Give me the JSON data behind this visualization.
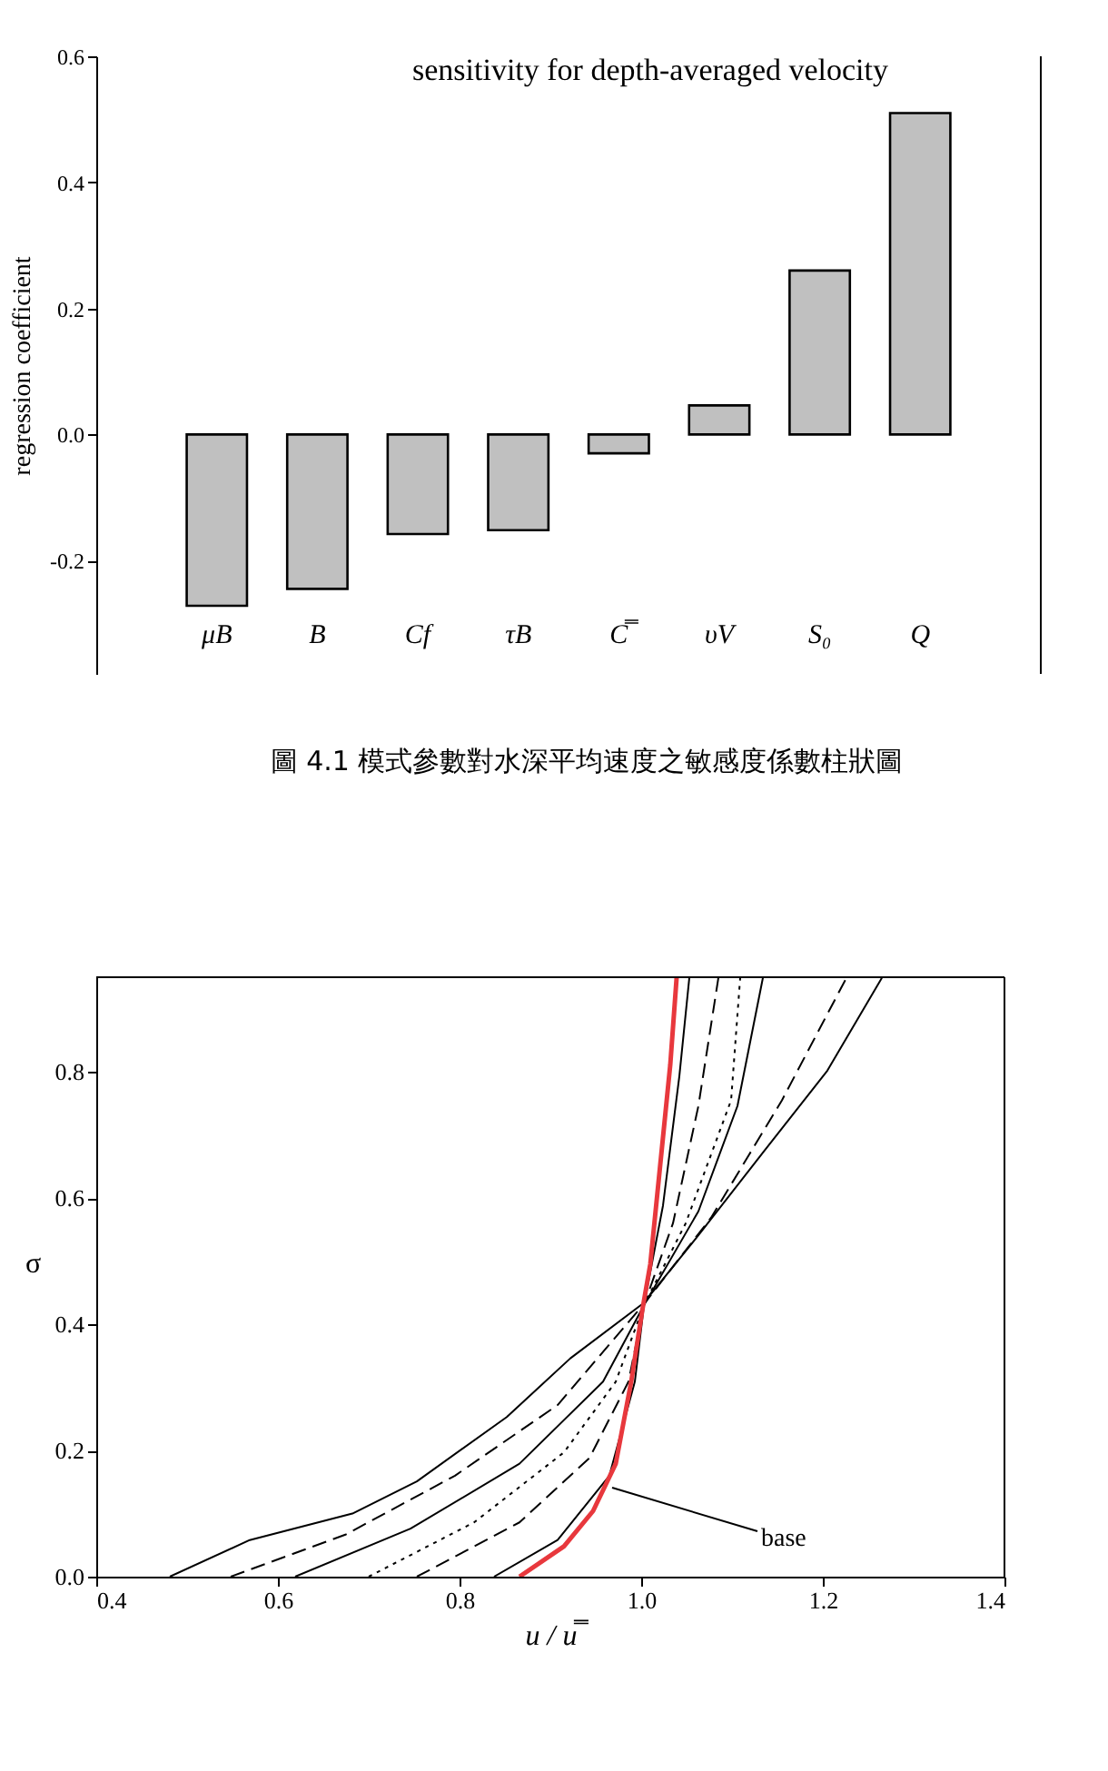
{
  "chart_data": [
    {
      "type": "bar",
      "title": "sensitivity for depth-averaged velocity",
      "ylabel": "regression coefficient",
      "categories": [
        "μB",
        "B",
        "Cf",
        "τB",
        "C̿",
        "υV",
        "S₀",
        "Q"
      ],
      "values": [
        -0.272,
        -0.245,
        -0.158,
        -0.152,
        -0.03,
        0.046,
        0.26,
        0.51
      ],
      "color": "#c0c0c0",
      "ylim": [
        -0.38,
        0.6
      ],
      "yticks": [
        -0.2,
        {
          "value": 0,
          "label": "0.0"
        },
        0.2,
        0.4,
        0.6
      ],
      "grid": false,
      "annotations": [
        "圖 4.1 模式參數對水深平均速度之敏感度係數柱狀圖"
      ]
    },
    {
      "type": "line",
      "xlabel": "u / u̿",
      "ylabel": "σ",
      "xlim": [
        0.4,
        1.4
      ],
      "xticks": [
        0.4,
        0.6,
        0.8,
        {
          "value": 1,
          "label": "1.0"
        },
        1.2,
        1.4
      ],
      "ylim": [
        0,
        0.95
      ],
      "yticks": [
        {
          "value": 0,
          "label": "0.0"
        },
        0.2,
        0.4,
        0.6,
        0.8
      ],
      "grid": false,
      "series": [
        {
          "color": "#000000",
          "line_style": "solid",
          "x": [
            0.481,
            0.569,
            0.682,
            0.753,
            0.852,
            0.922,
            1.003,
            1.063,
            1.134,
            1.205,
            1.265
          ],
          "values": [
            0,
            0.058,
            0.1,
            0.151,
            0.253,
            0.346,
            0.434,
            0.541,
            0.672,
            0.802,
            0.949
          ]
        },
        {
          "color": "#000000",
          "line_style": "dashed",
          "x": [
            0.548,
            0.675,
            0.795,
            0.908,
            1.003,
            1.077,
            1.155,
            1.226
          ],
          "values": [
            0,
            0.067,
            0.16,
            0.272,
            0.432,
            0.569,
            0.755,
            0.949
          ]
        },
        {
          "color": "#000000",
          "line_style": "solid",
          "x": [
            0.619,
            0.746,
            0.866,
            0.958,
            1.003,
            1.063,
            1.106,
            1.134
          ],
          "values": [
            0,
            0.076,
            0.179,
            0.309,
            0.43,
            0.579,
            0.746,
            0.949
          ]
        },
        {
          "color": "#000000",
          "line_style": "dotted",
          "x": [
            0.7,
            0.816,
            0.915,
            0.972,
            1.003,
            1.049,
            1.099,
            1.109
          ],
          "values": [
            0,
            0.086,
            0.197,
            0.309,
            0.43,
            0.56,
            0.755,
            0.949
          ]
        },
        {
          "color": "#000000",
          "line_style": "dashed",
          "x": [
            0.753,
            0.866,
            0.943,
            0.986,
            1.003,
            1.035,
            1.063,
            1.085
          ],
          "values": [
            0,
            0.086,
            0.188,
            0.309,
            0.43,
            0.56,
            0.746,
            0.949
          ]
        },
        {
          "color": "#000000",
          "line_style": "solid",
          "x": [
            0.838,
            0.908,
            0.965,
            0.993,
            1.003,
            1.024,
            1.042,
            1.053
          ],
          "values": [
            0,
            0.058,
            0.16,
            0.309,
            0.43,
            0.588,
            0.793,
            0.949
          ]
        },
        {
          "color": "#e8383d",
          "line_style": "solid",
          "x": [
            0.866,
            0.915,
            0.947,
            0.972,
            0.989,
            1.001,
            1.01,
            1.021,
            1.032,
            1.039
          ],
          "values": [
            0,
            0.048,
            0.104,
            0.179,
            0.309,
            0.42,
            0.495,
            0.653,
            0.811,
            0.949
          ]
        }
      ],
      "annotations": [
        {
          "text": "base",
          "x": 0.968,
          "y": 0.141
        }
      ]
    }
  ]
}
